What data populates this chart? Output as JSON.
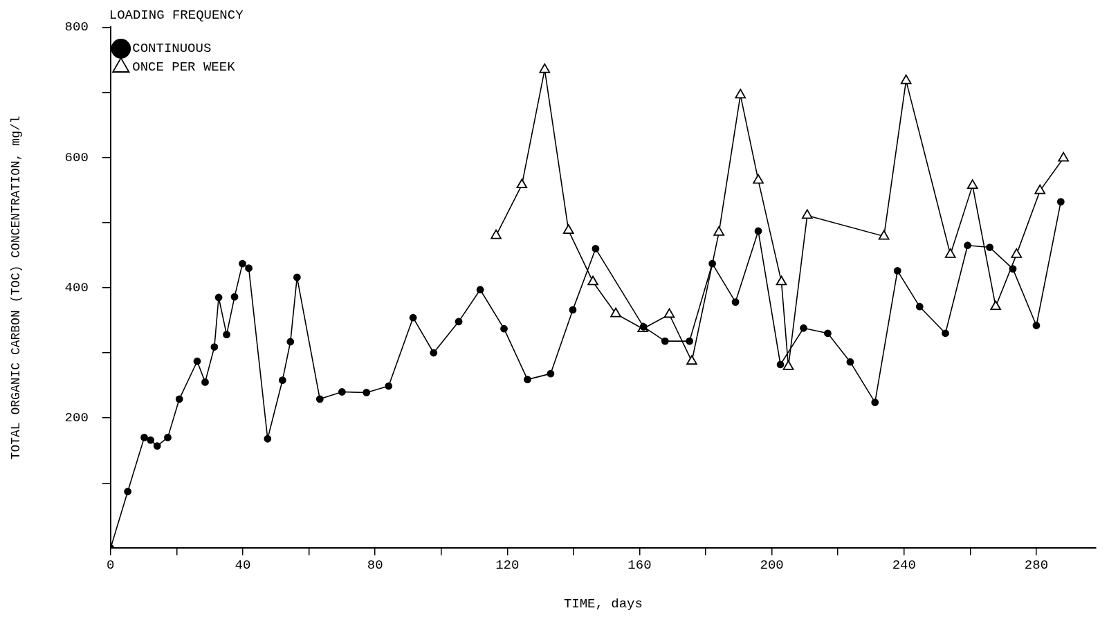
{
  "chart_data": {
    "type": "line",
    "xlabel": "TIME, days",
    "ylabel": "TOTAL ORGANIC CARBON (TOC) CONCENTRATION, mg/l",
    "legend_title": "LOADING FREQUENCY",
    "legend": "top left",
    "grid": false,
    "xlim": [
      0,
      298
    ],
    "xticks": [
      0,
      {
        "value": 20,
        "label": null
      },
      40,
      {
        "value": 60,
        "label": null
      },
      80,
      {
        "value": 100,
        "label": null
      },
      120,
      {
        "value": 140,
        "label": null
      },
      160,
      {
        "value": 180,
        "label": null
      },
      200,
      {
        "value": 220,
        "label": null
      },
      240,
      {
        "value": 260,
        "label": null
      },
      280
    ],
    "ylim": [
      0,
      800
    ],
    "yticks": [
      {
        "value": 100,
        "label": null
      },
      200,
      {
        "value": 300,
        "label": null
      },
      400,
      {
        "value": 500,
        "label": null
      },
      600,
      {
        "value": 700,
        "label": null
      },
      800
    ],
    "series": [
      {
        "name": "ONCE PER WEEK",
        "color": "#000000",
        "marker": "triangle",
        "x": [
          116.6,
          124.4,
          131.3,
          138.5,
          145.9,
          152.8,
          161,
          169,
          175.8,
          184,
          190.5,
          195.9,
          202.9,
          205,
          210.7,
          233.9,
          240.6,
          254,
          260.7,
          267.7,
          274,
          281.1,
          288.2
        ],
        "values": [
          480,
          558,
          735,
          488,
          409,
          360,
          337,
          359,
          287,
          485,
          696,
          565,
          409,
          279,
          511,
          479,
          718,
          451,
          557,
          371,
          451,
          549,
          599
        ]
      },
      {
        "name": "CONTINUOUS",
        "color": "#000000",
        "marker": "circle",
        "x": [
          0,
          5.2,
          10.2,
          12.1,
          14.1,
          17.3,
          20.8,
          26.2,
          28.6,
          31.4,
          32.7,
          35.1,
          37.5,
          39.9,
          41.8,
          47.5,
          52,
          54.4,
          56.4,
          63.3,
          70,
          77.4,
          84.1,
          91.5,
          97.7,
          105.3,
          111.8,
          119,
          126.1,
          133.1,
          139.8,
          146.7,
          161.2,
          167.7,
          175.1,
          182,
          189,
          195.9,
          202.6,
          209.6,
          216.9,
          223.7,
          231.2,
          238,
          244.7,
          252.5,
          259.2,
          265.9,
          272.9,
          280,
          287.4
        ],
        "values": [
          0,
          87,
          170,
          166,
          157,
          170,
          229,
          287,
          255,
          309,
          385,
          328,
          386,
          437,
          430,
          168,
          258,
          317,
          416,
          229,
          240,
          239,
          249,
          354,
          300,
          348,
          397,
          337,
          259,
          268,
          366,
          460,
          340,
          318,
          318,
          437,
          378,
          487,
          282,
          338,
          330,
          286,
          224,
          426,
          371,
          330,
          465,
          462,
          429,
          342,
          532
        ]
      }
    ]
  }
}
